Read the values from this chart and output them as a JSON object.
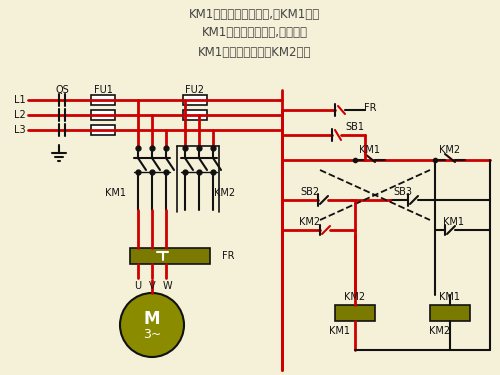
{
  "bg_color": "#f5f0d8",
  "title_lines": [
    "KM1动合辅助触头闭合,对KM1自锁",
    "KM1动合主触头闭合,电机正转",
    "KM1动断触头断开对KM2联锁"
  ],
  "title_color": "#444444",
  "wire_red": "#cc0000",
  "wire_black": "#111111",
  "component_fill": "#7a7a00",
  "motor_fill": "#8b8b00"
}
